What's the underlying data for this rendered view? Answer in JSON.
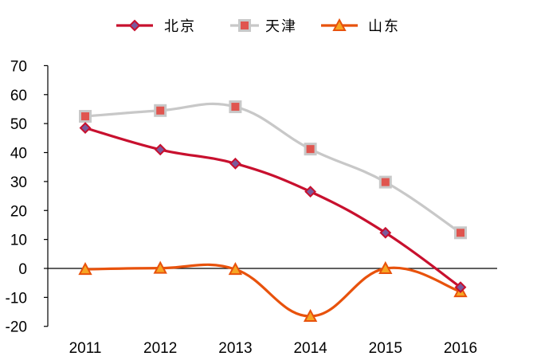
{
  "chart_data": {
    "type": "line",
    "title": "",
    "xlabel": "",
    "ylabel": "",
    "x": [
      "2011",
      "2012",
      "2013",
      "2014",
      "2015",
      "2016"
    ],
    "ylim": [
      -20,
      70
    ],
    "yticks": [
      "70",
      "60",
      "50",
      "40",
      "30",
      "20",
      "10",
      "0",
      "-10",
      "-20"
    ],
    "ytick_values": [
      70,
      60,
      50,
      40,
      30,
      20,
      10,
      0,
      -10,
      -20
    ],
    "grid": false,
    "legend_position": "top",
    "series": [
      {
        "name": "北京",
        "values": [
          48.5,
          41,
          36.2,
          26.5,
          12.3,
          -6.5
        ],
        "color": "#c8102e",
        "marker": "diamond"
      },
      {
        "name": "天津",
        "values": [
          52.5,
          54.5,
          55.8,
          41.2,
          29.8,
          12.3
        ],
        "color": "#c8c8c8",
        "marker": "square",
        "marker_color": "#e0554f"
      },
      {
        "name": "山东",
        "values": [
          -0.3,
          0.1,
          -0.3,
          -16.5,
          0,
          -8
        ],
        "color": "#e8520c",
        "marker": "triangle",
        "marker_fill": "#f6a623"
      }
    ]
  }
}
